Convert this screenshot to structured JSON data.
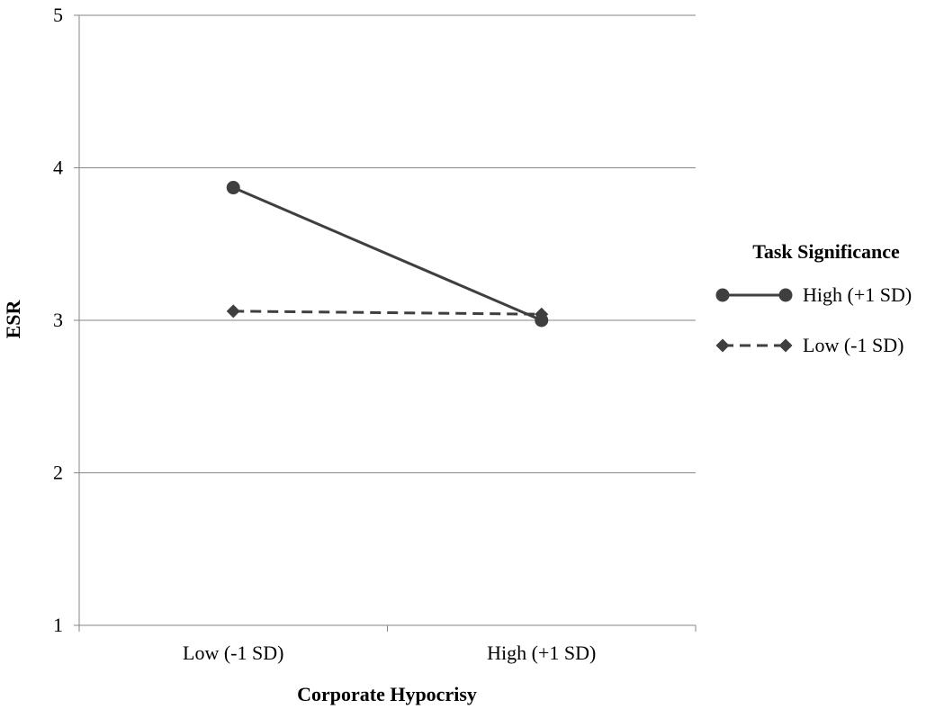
{
  "chart_data": {
    "type": "line",
    "title": "",
    "xlabel": "Corporate Hypocrisy",
    "ylabel": "ESR",
    "categories": [
      "Low (-1 SD)",
      "High (+1 SD)"
    ],
    "ylim": [
      1,
      5
    ],
    "yticks": [
      1,
      2,
      3,
      4,
      5
    ],
    "grid": true,
    "legend": {
      "title": "Task Significance",
      "placement": "right"
    },
    "series": [
      {
        "name": "High (+1 SD)",
        "values": [
          3.87,
          3.0
        ],
        "marker": "circle",
        "line_style": "solid",
        "color": "#3f3f3f"
      },
      {
        "name": "Low (-1 SD)",
        "values": [
          3.06,
          3.04
        ],
        "marker": "diamond",
        "line_style": "dashed",
        "color": "#3f3f3f"
      }
    ]
  }
}
